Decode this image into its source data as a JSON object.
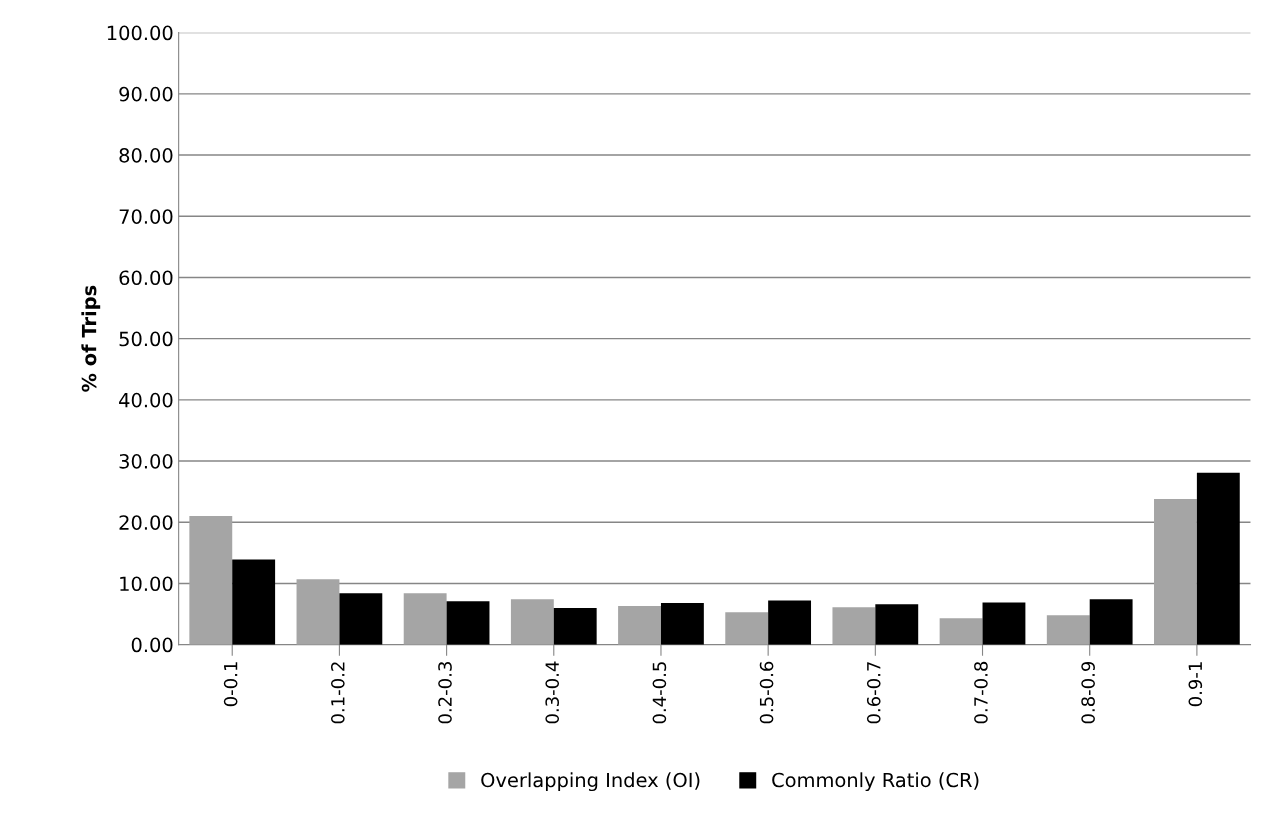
{
  "chart_data": {
    "type": "bar",
    "ylabel": "% of Trips",
    "categories": [
      "0-0.1",
      "0.1-0.2",
      "0.2-0.3",
      "0.3-0.4",
      "0.4-0.5",
      "0.5-0.6",
      "0.6-0.7",
      "0.7-0.8",
      "0.8-0.9",
      "0.9-1"
    ],
    "series": [
      {
        "name": "Overlapping Index (OI)",
        "color": "#a5a5a5",
        "values": [
          21.0,
          10.7,
          8.4,
          7.4,
          6.3,
          5.3,
          6.1,
          4.3,
          4.8,
          23.8
        ]
      },
      {
        "name": "Commonly Ratio (CR)",
        "color": "#000000",
        "values": [
          13.9,
          8.4,
          7.1,
          6.0,
          6.8,
          7.2,
          6.6,
          6.9,
          7.4,
          28.1
        ]
      }
    ],
    "ylim": [
      0,
      100
    ],
    "yticks": [
      {
        "value": 0,
        "label": "0.00"
      },
      {
        "value": 10,
        "label": "10.00"
      },
      {
        "value": 20,
        "label": "20.00"
      },
      {
        "value": 30,
        "label": "30.00"
      },
      {
        "value": 40,
        "label": "40.00"
      },
      {
        "value": 50,
        "label": "50.00"
      },
      {
        "value": 60,
        "label": "60.00"
      },
      {
        "value": 70,
        "label": "70.00"
      },
      {
        "value": 80,
        "label": "80.00"
      },
      {
        "value": 90,
        "label": "90.00"
      },
      {
        "value": 100,
        "label": "100.00"
      }
    ],
    "grid": "y",
    "legend": "bottom"
  }
}
